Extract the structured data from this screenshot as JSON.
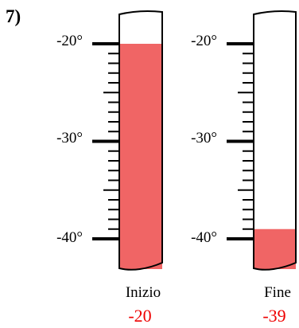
{
  "problem_number": "7)",
  "scale_labels": [
    "-20°",
    "-30°",
    "-40°"
  ],
  "thermometers": [
    {
      "name": "Inizio",
      "value": "-20",
      "reading": -20
    },
    {
      "name": "Fine",
      "value": "-39",
      "reading": -39
    }
  ],
  "scale": {
    "top": -20,
    "bottom": -40,
    "step": 1
  },
  "colors": {
    "fill": "#f06565",
    "value_text": "#ee0000",
    "outline": "#000000"
  }
}
